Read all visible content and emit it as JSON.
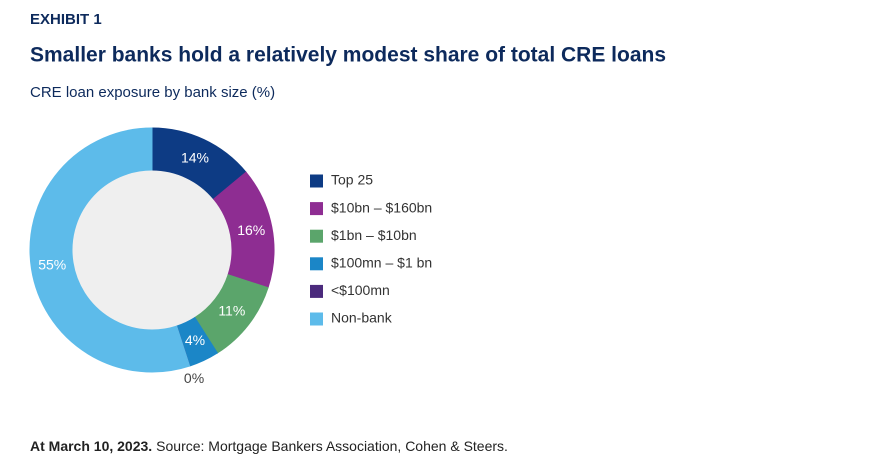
{
  "exhibit": "EXHIBIT 1",
  "chart_data": {
    "type": "donut",
    "title": "Smaller banks hold a relatively modest share of total CRE loans",
    "subtitle": "CRE loan exposure by bank size (%)",
    "categories": [
      "Top 25",
      "$10bn – $160bn",
      "$1bn – $10bn",
      "$100mn – $1 bn",
      "<$100mn",
      "Non-bank"
    ],
    "values": [
      14,
      16,
      11,
      4,
      0,
      55
    ],
    "value_labels": [
      "14%",
      "16%",
      "11%",
      "4%",
      "0%",
      "55%"
    ],
    "colors": [
      "#0d3b84",
      "#8e2d92",
      "#5ba56b",
      "#1b86c7",
      "#4b2a7c",
      "#5dbbea"
    ],
    "legend": "right"
  },
  "note": {
    "date": "At March 10, 2023.",
    "source": "Source: Mortgage Bankers Association, Cohen & Steers."
  }
}
